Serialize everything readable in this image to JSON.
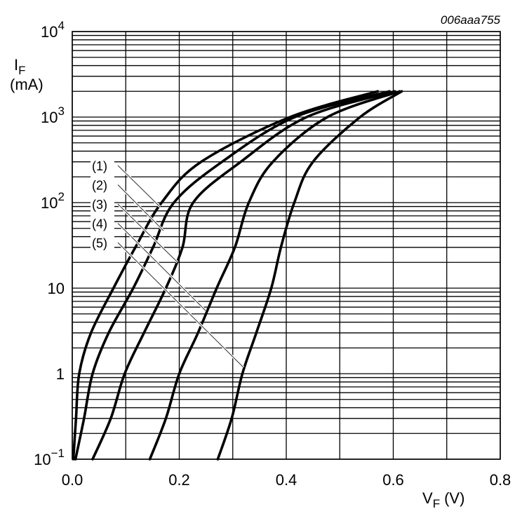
{
  "chart_data": {
    "type": "line",
    "title": "",
    "annotation": "006aaa755",
    "xlabel": {
      "main": "V",
      "sub": "F",
      "unit": "(V)"
    },
    "ylabel": {
      "main": "I",
      "sub": "F",
      "unit": "(mA)"
    },
    "xlim": [
      0,
      0.8
    ],
    "ylim": [
      0.1,
      10000
    ],
    "yscale": "log",
    "grid": true,
    "x_ticks": [
      "0.0",
      "0.2",
      "0.4",
      "0.6",
      "0.8"
    ],
    "y_ticks": [
      {
        "base": "10",
        "exp": "−1"
      },
      {
        "base": "1",
        "exp": ""
      },
      {
        "base": "10",
        "exp": ""
      },
      {
        "base": "10",
        "exp": "2"
      },
      {
        "base": "10",
        "exp": "3"
      },
      {
        "base": "10",
        "exp": "4"
      }
    ],
    "line_color": "#000000",
    "series": [
      {
        "name": "(1)",
        "x": [
          0.002,
          0.007,
          0.013,
          0.035,
          0.077,
          0.118,
          0.167,
          0.241,
          0.407,
          0.571
        ],
        "y": [
          0.1,
          0.3,
          1,
          3,
          10,
          30,
          100,
          300,
          1000,
          2000
        ]
      },
      {
        "name": "(2)",
        "x": [
          0.006,
          0.022,
          0.038,
          0.068,
          0.114,
          0.151,
          0.19,
          0.28,
          0.416,
          0.593
        ],
        "y": [
          0.1,
          0.3,
          1,
          3,
          10,
          30,
          100,
          300,
          1000,
          2000
        ]
      },
      {
        "name": "(3)",
        "x": [
          0.038,
          0.072,
          0.098,
          0.134,
          0.175,
          0.206,
          0.226,
          0.315,
          0.438,
          0.603
        ],
        "y": [
          0.1,
          0.3,
          1,
          3,
          10,
          30,
          100,
          300,
          1000,
          2000
        ]
      },
      {
        "name": "(4)",
        "x": [
          0.145,
          0.175,
          0.2,
          0.235,
          0.27,
          0.304,
          0.33,
          0.375,
          0.477,
          0.612
        ],
        "y": [
          0.1,
          0.3,
          1,
          3,
          10,
          30,
          100,
          300,
          1000,
          2000
        ]
      },
      {
        "name": "(5)",
        "x": [
          0.272,
          0.298,
          0.318,
          0.344,
          0.372,
          0.39,
          0.415,
          0.45,
          0.538,
          0.616
        ],
        "y": [
          0.1,
          0.3,
          1,
          3,
          10,
          30,
          100,
          300,
          1000,
          2000
        ]
      }
    ]
  }
}
